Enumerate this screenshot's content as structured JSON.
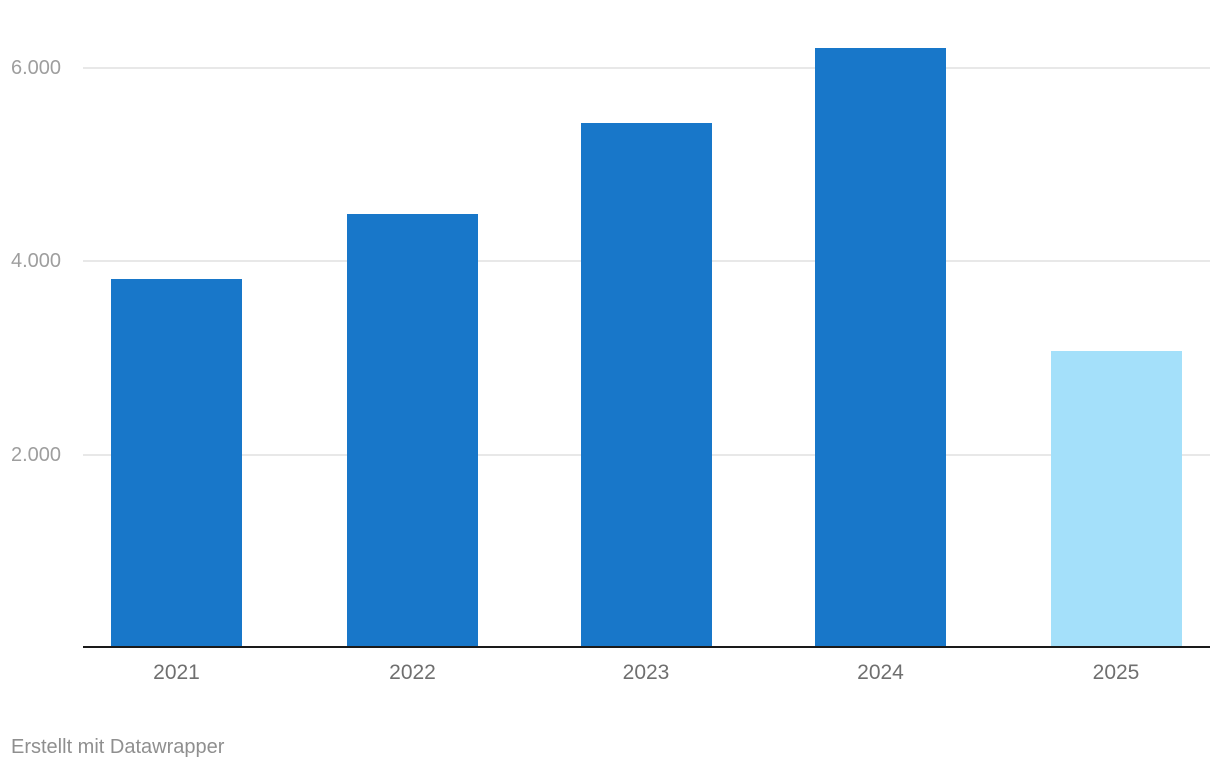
{
  "footer": {
    "attribution": "Erstellt mit Datawrapper"
  },
  "colors": {
    "bar_default": "#1877c9",
    "bar_highlight_2025": "#a4e0fa",
    "axis_line": "#1a1a1a",
    "gridline": "#e8e8e8",
    "y_tick_label": "#9e9e9e",
    "x_tick_label": "#6f6f6f",
    "background": "#ffffff"
  },
  "chart_data": {
    "type": "bar",
    "categories": [
      "2021",
      "2022",
      "2023",
      "2024",
      "2025"
    ],
    "values": [
      3820,
      4490,
      5430,
      6210,
      3070
    ],
    "bar_colors": [
      "#1877c9",
      "#1877c9",
      "#1877c9",
      "#1877c9",
      "#a4e0fa"
    ],
    "title": "",
    "xlabel": "",
    "ylabel": "",
    "y_ticks": [
      {
        "value": 2000,
        "label": "2.000"
      },
      {
        "value": 4000,
        "label": "4.000"
      },
      {
        "value": 6000,
        "label": "6.000"
      }
    ],
    "ylim": [
      0,
      6700
    ],
    "grid": true,
    "legend": false
  }
}
